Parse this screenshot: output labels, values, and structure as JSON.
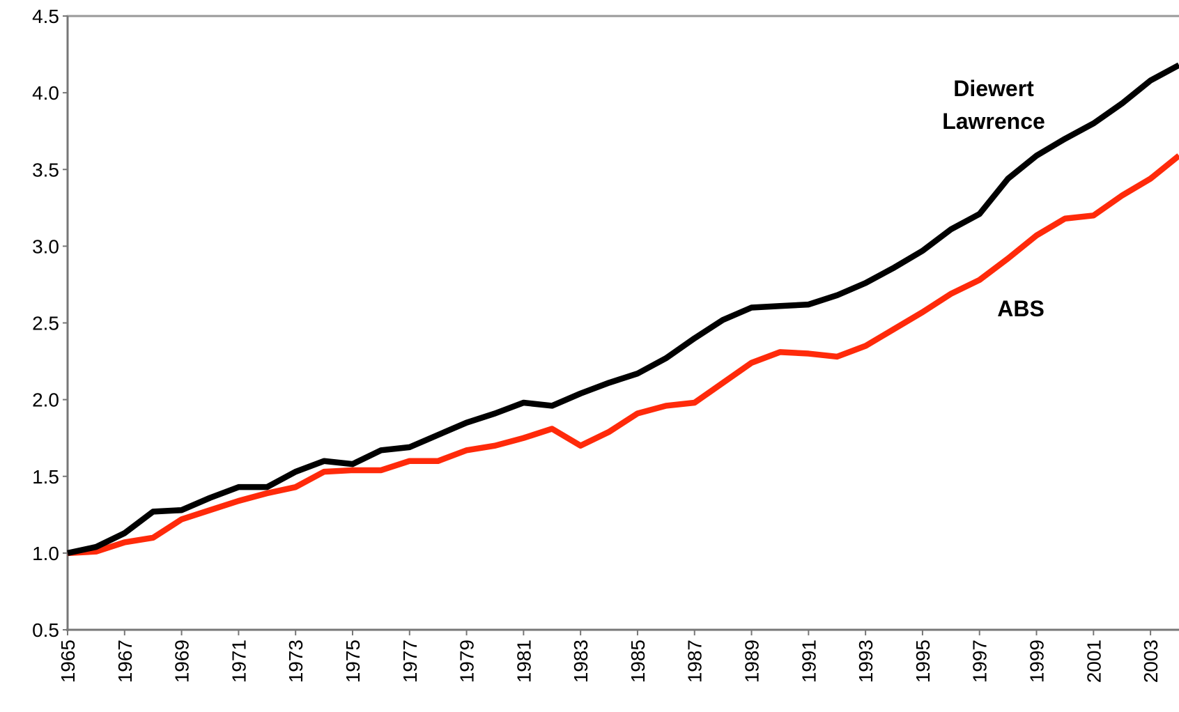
{
  "chart_data": {
    "type": "line",
    "x": [
      1965,
      1966,
      1967,
      1968,
      1969,
      1970,
      1971,
      1972,
      1973,
      1974,
      1975,
      1976,
      1977,
      1978,
      1979,
      1980,
      1981,
      1982,
      1983,
      1984,
      1985,
      1986,
      1987,
      1988,
      1989,
      1990,
      1991,
      1992,
      1993,
      1994,
      1995,
      1996,
      1997,
      1998,
      1999,
      2000,
      2001,
      2002,
      2003,
      2004
    ],
    "series": [
      {
        "name": "Diewert Lawrence",
        "color": "#000000",
        "values": [
          1.0,
          1.04,
          1.13,
          1.27,
          1.28,
          1.36,
          1.43,
          1.43,
          1.53,
          1.6,
          1.58,
          1.67,
          1.69,
          1.77,
          1.85,
          1.91,
          1.98,
          1.96,
          2.04,
          2.11,
          2.17,
          2.27,
          2.4,
          2.52,
          2.6,
          2.61,
          2.62,
          2.68,
          2.76,
          2.86,
          2.97,
          3.11,
          3.21,
          3.44,
          3.59,
          3.7,
          3.8,
          3.93,
          4.08,
          4.18
        ]
      },
      {
        "name": "ABS",
        "color": "#ff2a0a",
        "values": [
          1.0,
          1.01,
          1.07,
          1.1,
          1.22,
          1.28,
          1.34,
          1.39,
          1.43,
          1.53,
          1.54,
          1.54,
          1.6,
          1.6,
          1.67,
          1.7,
          1.75,
          1.81,
          1.7,
          1.79,
          1.91,
          1.96,
          1.98,
          2.11,
          2.24,
          2.31,
          2.3,
          2.28,
          2.35,
          2.46,
          2.57,
          2.69,
          2.78,
          2.92,
          3.07,
          3.18,
          3.2,
          3.33,
          3.44,
          3.59
        ]
      }
    ],
    "xlim": [
      1965,
      2004
    ],
    "xticks": [
      1965,
      1967,
      1969,
      1971,
      1973,
      1975,
      1977,
      1979,
      1981,
      1983,
      1985,
      1987,
      1989,
      1991,
      1993,
      1995,
      1997,
      1999,
      2001,
      2003
    ],
    "ylim": [
      0.5,
      4.5
    ],
    "yticks": [
      0.5,
      {
        "value": 1,
        "label": "1.0"
      },
      1.5,
      {
        "value": 2,
        "label": "2.0"
      },
      2.5,
      {
        "value": 3,
        "label": "3.0"
      },
      3.5,
      {
        "value": 4,
        "label": "4.0"
      },
      4.5
    ],
    "grid": false
  }
}
